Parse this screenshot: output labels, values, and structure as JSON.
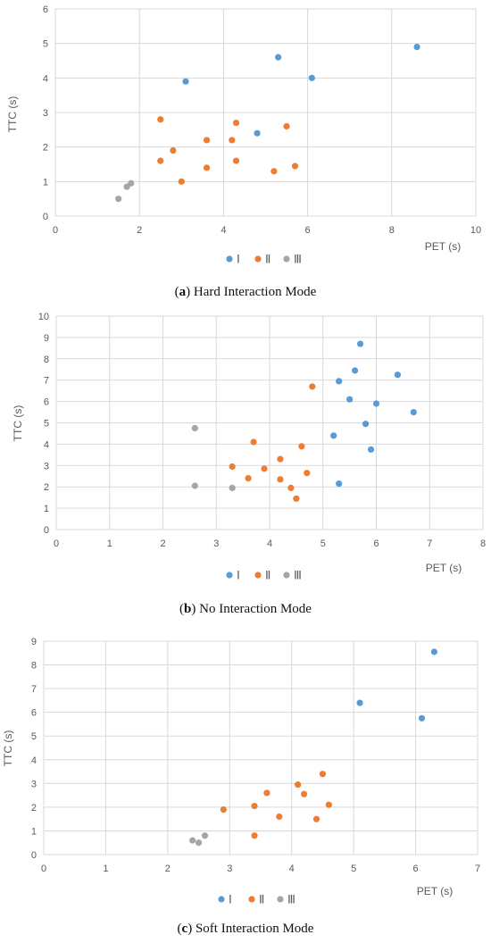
{
  "colors": {
    "I": "#5b9bd5",
    "II": "#ed7d31",
    "III": "#a5a5a5"
  },
  "chart_data": [
    {
      "type": "scatter",
      "caption_letter": "a",
      "caption_text": "Hard Interaction Mode",
      "xlabel": "PET (s)",
      "ylabel": "TTC (s)",
      "xlim": [
        0,
        10
      ],
      "ylim": [
        0,
        6
      ],
      "xticks": [
        0,
        2,
        4,
        6,
        8,
        10
      ],
      "yticks": [
        0,
        1,
        2,
        3,
        4,
        5,
        6
      ],
      "grid": true,
      "legend_position": "bottom",
      "series": [
        {
          "name": "Ⅰ",
          "key": "I",
          "points": [
            [
              3.1,
              3.9
            ],
            [
              4.8,
              2.4
            ],
            [
              5.3,
              4.6
            ],
            [
              6.1,
              4.0
            ],
            [
              8.6,
              4.9
            ]
          ]
        },
        {
          "name": "Ⅱ",
          "key": "II",
          "points": [
            [
              2.5,
              2.8
            ],
            [
              2.5,
              1.6
            ],
            [
              2.8,
              1.9
            ],
            [
              3.0,
              1.0
            ],
            [
              3.6,
              2.2
            ],
            [
              3.6,
              1.4
            ],
            [
              4.2,
              2.2
            ],
            [
              4.3,
              2.7
            ],
            [
              4.3,
              1.6
            ],
            [
              5.2,
              1.3
            ],
            [
              5.5,
              2.6
            ],
            [
              5.7,
              1.45
            ]
          ]
        },
        {
          "name": "Ⅲ",
          "key": "III",
          "points": [
            [
              1.5,
              0.5
            ],
            [
              1.7,
              0.85
            ],
            [
              1.8,
              0.95
            ]
          ]
        }
      ]
    },
    {
      "type": "scatter",
      "caption_letter": "b",
      "caption_text": "No Interaction Mode",
      "xlabel": "PET (s)",
      "ylabel": "TTC (s)",
      "xlim": [
        0,
        8
      ],
      "ylim": [
        0,
        10
      ],
      "xticks": [
        0,
        1,
        2,
        3,
        4,
        5,
        6,
        7,
        8
      ],
      "yticks": [
        0,
        1,
        2,
        3,
        4,
        5,
        6,
        7,
        8,
        9,
        10
      ],
      "grid": true,
      "legend_position": "bottom",
      "series": [
        {
          "name": "Ⅰ",
          "key": "I",
          "points": [
            [
              5.2,
              4.4
            ],
            [
              5.3,
              6.95
            ],
            [
              5.3,
              2.15
            ],
            [
              5.5,
              6.1
            ],
            [
              5.6,
              7.45
            ],
            [
              5.7,
              8.7
            ],
            [
              5.8,
              4.95
            ],
            [
              5.9,
              3.75
            ],
            [
              6.0,
              5.9
            ],
            [
              6.4,
              7.25
            ],
            [
              6.7,
              5.5
            ]
          ]
        },
        {
          "name": "Ⅱ",
          "key": "II",
          "points": [
            [
              3.3,
              2.95
            ],
            [
              3.6,
              2.4
            ],
            [
              3.7,
              4.1
            ],
            [
              3.9,
              2.85
            ],
            [
              4.2,
              3.3
            ],
            [
              4.2,
              2.35
            ],
            [
              4.4,
              1.95
            ],
            [
              4.5,
              1.45
            ],
            [
              4.6,
              3.9
            ],
            [
              4.7,
              2.65
            ],
            [
              4.8,
              6.7
            ]
          ]
        },
        {
          "name": "Ⅲ",
          "key": "III",
          "points": [
            [
              2.6,
              4.75
            ],
            [
              2.6,
              2.05
            ],
            [
              3.3,
              1.95
            ]
          ]
        }
      ]
    },
    {
      "type": "scatter",
      "caption_letter": "c",
      "caption_text": "Soft Interaction Mode",
      "xlabel": "PET (s)",
      "ylabel": "TTC (s)",
      "xlim": [
        0,
        7
      ],
      "ylim": [
        0,
        9
      ],
      "xticks": [
        0,
        1,
        2,
        3,
        4,
        5,
        6,
        7
      ],
      "yticks": [
        0,
        1,
        2,
        3,
        4,
        5,
        6,
        7,
        8,
        9
      ],
      "grid": true,
      "legend_position": "bottom",
      "series": [
        {
          "name": "Ⅰ",
          "key": "I",
          "points": [
            [
              5.1,
              6.4
            ],
            [
              6.1,
              5.75
            ],
            [
              6.3,
              8.55
            ]
          ]
        },
        {
          "name": "Ⅱ",
          "key": "II",
          "points": [
            [
              2.9,
              1.9
            ],
            [
              3.4,
              2.05
            ],
            [
              3.4,
              0.8
            ],
            [
              3.6,
              2.6
            ],
            [
              3.8,
              1.6
            ],
            [
              4.1,
              2.95
            ],
            [
              4.2,
              2.55
            ],
            [
              4.4,
              1.5
            ],
            [
              4.5,
              3.4
            ],
            [
              4.6,
              2.1
            ]
          ]
        },
        {
          "name": "Ⅲ",
          "key": "III",
          "points": [
            [
              2.4,
              0.6
            ],
            [
              2.5,
              0.5
            ],
            [
              2.6,
              0.8
            ]
          ]
        }
      ]
    }
  ]
}
